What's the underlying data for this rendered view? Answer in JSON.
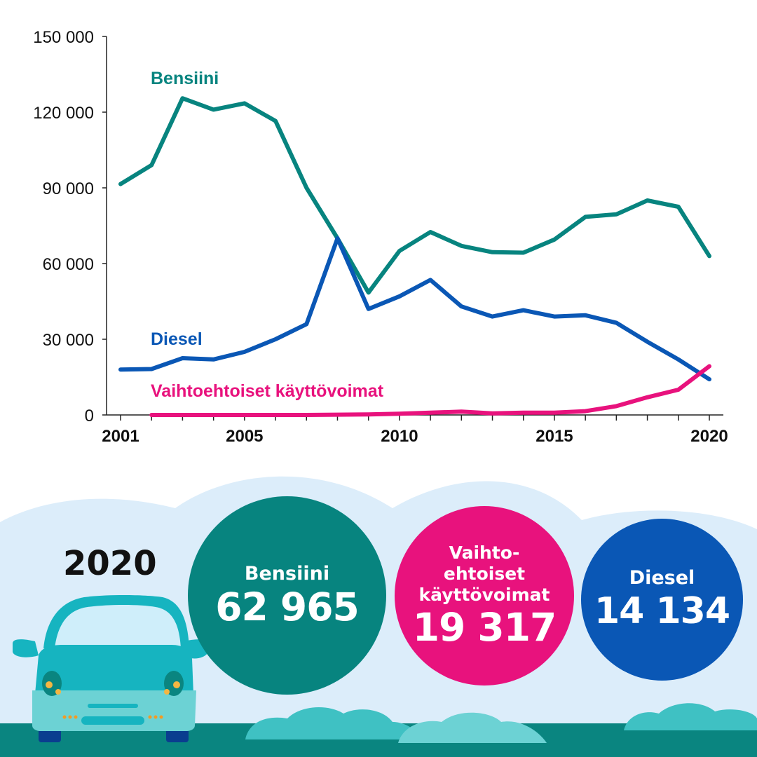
{
  "chart_data": {
    "type": "line",
    "x": [
      2001,
      2002,
      2003,
      2004,
      2005,
      2006,
      2007,
      2008,
      2009,
      2010,
      2011,
      2012,
      2013,
      2014,
      2015,
      2016,
      2017,
      2018,
      2019,
      2020
    ],
    "yticks": [
      "0",
      "30 000",
      "60 000",
      "90 000",
      "120 000",
      "150 000"
    ],
    "ytick_values": [
      0,
      30000,
      60000,
      90000,
      120000,
      150000
    ],
    "xticks": [
      "2001",
      "2005",
      "2010",
      "2015",
      "2020"
    ],
    "xtick_values": [
      2001,
      2005,
      2010,
      2015,
      2020
    ],
    "xlim": [
      2001,
      2020
    ],
    "ylim": [
      0,
      150000
    ],
    "grid": false,
    "series": [
      {
        "name": "Bensiini",
        "color": "#07847f",
        "x": [
          2001,
          2002,
          2003,
          2004,
          2005,
          2006,
          2007,
          2008,
          2009,
          2010,
          2011,
          2012,
          2013,
          2014,
          2015,
          2016,
          2017,
          2018,
          2019,
          2020
        ],
        "values": [
          91500,
          99000,
          125500,
          121000,
          123500,
          116500,
          90000,
          70000,
          48500,
          65000,
          72500,
          67000,
          64500,
          64300,
          69500,
          78500,
          79500,
          85000,
          82500,
          62965
        ]
      },
      {
        "name": "Diesel",
        "color": "#0a57b5",
        "x": [
          2001,
          2002,
          2003,
          2004,
          2005,
          2006,
          2007,
          2008,
          2009,
          2010,
          2011,
          2012,
          2013,
          2014,
          2015,
          2016,
          2017,
          2018,
          2019,
          2020
        ],
        "values": [
          18000,
          18200,
          22500,
          22000,
          25000,
          30000,
          36000,
          70000,
          42000,
          47000,
          53500,
          43000,
          39000,
          41500,
          39000,
          39500,
          36500,
          29000,
          22000,
          14134
        ]
      },
      {
        "name": "Vaihtoehtoiset käyttövoimat",
        "color": "#e8127d",
        "x": [
          2002,
          2003,
          2004,
          2005,
          2006,
          2007,
          2008,
          2009,
          2010,
          2011,
          2012,
          2013,
          2014,
          2015,
          2016,
          2017,
          2018,
          2019,
          2020
        ],
        "values": [
          0,
          0,
          0,
          0,
          0,
          0,
          100,
          200,
          500,
          900,
          1300,
          600,
          900,
          900,
          1500,
          3500,
          7000,
          10000,
          19317
        ]
      }
    ]
  },
  "summary": {
    "year": "2020",
    "items": [
      {
        "label": [
          "Bensiini"
        ],
        "value": "62 965",
        "color": "#07847f"
      },
      {
        "label": [
          "Vaihto-",
          "ehtoiset",
          "käyttövoimat"
        ],
        "value": "19 317",
        "color": "#e8127d"
      },
      {
        "label": [
          "Diesel"
        ],
        "value": "14 134",
        "color": "#0a57b5"
      }
    ]
  },
  "colors": {
    "sky": "#dcedfa",
    "ground": "#0a8580",
    "bush": "#3fc1c3",
    "bush_light": "#6cd2d4",
    "car_body": "#16b4c0",
    "car_light": "#5dcfd8",
    "axis": "#222222"
  }
}
